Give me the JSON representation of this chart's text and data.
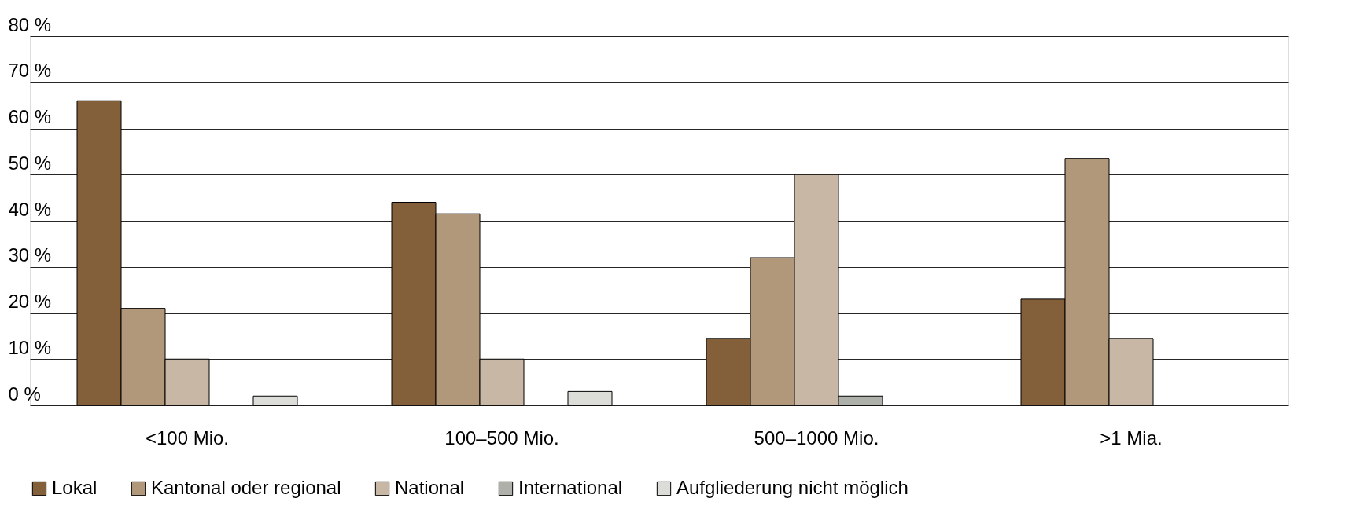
{
  "chart_data": {
    "type": "bar",
    "categories": [
      "<100 Mio.",
      "100–500 Mio.",
      "500–1000 Mio.",
      ">1 Mia."
    ],
    "series": [
      {
        "name": "Lokal",
        "color": "#835f3a",
        "values": [
          66,
          44,
          14.5,
          23
        ]
      },
      {
        "name": "Kantonal oder regional",
        "color": "#b1987a",
        "values": [
          21,
          41.5,
          32,
          53.5
        ]
      },
      {
        "name": "National",
        "color": "#c9b7a5",
        "values": [
          10,
          10,
          50,
          14.5
        ]
      },
      {
        "name": "International",
        "color": "#aeb0aa",
        "values": [
          null,
          null,
          2,
          null
        ]
      },
      {
        "name": "Aufgliederung nicht möglich",
        "color": "#dcdcd9",
        "values": [
          2,
          3,
          null,
          null
        ]
      }
    ],
    "ylim": [
      0,
      80
    ],
    "yticks": [
      {
        "value": 0,
        "label": "0 %"
      },
      {
        "value": 10,
        "label": "10 %"
      },
      {
        "value": 20,
        "label": "20 %"
      },
      {
        "value": 30,
        "label": "30 %"
      },
      {
        "value": 40,
        "label": "40 %"
      },
      {
        "value": 50,
        "label": "50 %"
      },
      {
        "value": 60,
        "label": "60 %"
      },
      {
        "value": 70,
        "label": "70 %"
      },
      {
        "value": 80,
        "label": "80 %"
      }
    ],
    "grid": "y",
    "legend": "bottom"
  }
}
